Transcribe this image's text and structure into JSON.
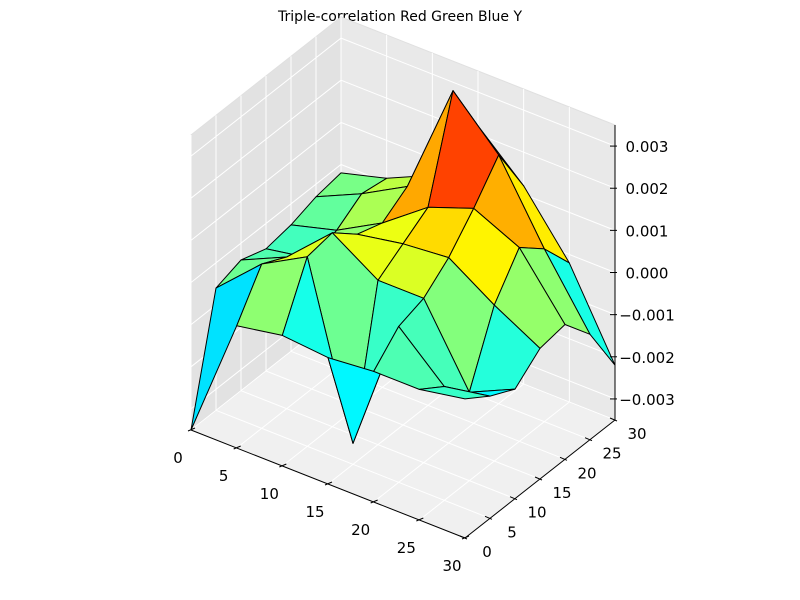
{
  "chart_data": {
    "type": "surface",
    "title": "Triple-correlation Red Green Blue Y",
    "xlabel": "",
    "ylabel": "",
    "zlabel": "",
    "xlim": [
      0,
      30
    ],
    "ylim": [
      0,
      30
    ],
    "zlim": [
      -0.0035,
      0.0035
    ],
    "x_ticks": [
      "0",
      "5",
      "10",
      "15",
      "20",
      "25",
      "30"
    ],
    "y_ticks": [
      "0",
      "5",
      "10",
      "15",
      "20",
      "25",
      "30"
    ],
    "z_ticks": [
      "−0.003",
      "−0.002",
      "−0.001",
      "0.000",
      "0.001",
      "0.002",
      "0.003"
    ],
    "grid": true,
    "colormap": "jet",
    "edge_color": "#000000",
    "x": [
      0,
      5,
      10,
      15,
      20,
      25,
      30
    ],
    "y": [
      0,
      5,
      10,
      15,
      20,
      25,
      30
    ],
    "z": [
      [
        -0.0035,
        -0.0006,
        -0.0004,
        -0.0006,
        -0.0005,
        -0.0003,
        -0.0002
      ],
      [
        -0.0006,
        0.0004,
        0.0001,
        -0.0004,
        -0.0002,
        0.0002,
        0.0001
      ],
      [
        -0.0004,
        0.001,
        0.0011,
        0.0006,
        0.0004,
        0.0008,
        0.0006
      ],
      [
        -0.0005,
        -0.003,
        0.0004,
        0.0008,
        0.0012,
        0.0035,
        0.0022
      ],
      [
        -0.0004,
        0.0002,
        0.0004,
        0.0009,
        0.0016,
        0.0024,
        0.0012
      ],
      [
        -0.0004,
        -0.0008,
        -0.0014,
        0.0002,
        0.0011,
        0.0006,
        -0.0002
      ],
      [
        -0.0002,
        -0.0006,
        -0.0009,
        -0.0004,
        -0.0003,
        -0.001,
        -0.0022
      ]
    ]
  }
}
